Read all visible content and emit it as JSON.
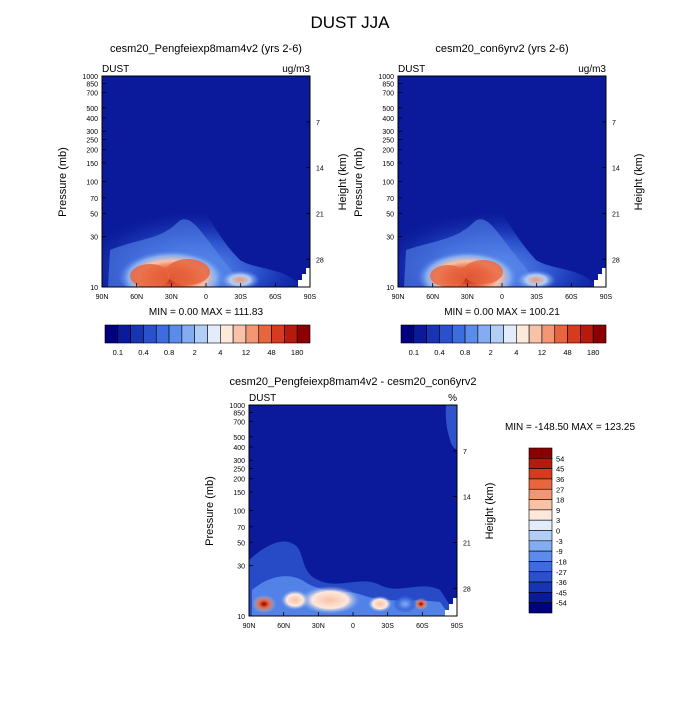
{
  "title": "DUST JJA",
  "colors": {
    "upper_scale": [
      "#00007f",
      "#0a1a9a",
      "#1734b4",
      "#2a50cc",
      "#3d6ce0",
      "#5b8cec",
      "#84acf2",
      "#b2cdf6",
      "#e2ecfa",
      "#fde8dc",
      "#f8c2a8",
      "#f29674",
      "#e8653e",
      "#d63a1f",
      "#b51a0e",
      "#8b0000"
    ],
    "diff_scale": [
      "#00007f",
      "#0a1a9a",
      "#1734b4",
      "#2a50cc",
      "#3d6ce0",
      "#5b8cec",
      "#84acf2",
      "#b2cdf6",
      "#e2ecfa",
      "#fde8dc",
      "#f8c2a8",
      "#f29674",
      "#e8653e",
      "#d63a1f",
      "#b51a0e",
      "#8b0000"
    ],
    "background": "#0a1a9a"
  },
  "chart_data": [
    {
      "type": "heatmap",
      "title": "cesm20_Pengfeiexp8mam4v2 (yrs 2-6)",
      "left_label": "DUST",
      "right_label": "ug/m3",
      "ylabel": "Pressure (mb)",
      "ylabel_right": "Height (km)",
      "xticks": [
        "90N",
        "60N",
        "30N",
        "0",
        "30S",
        "60S",
        "90S"
      ],
      "yticks": [
        "10",
        "30",
        "50",
        "70",
        "100",
        "150",
        "200",
        "250",
        "300",
        "400",
        "500",
        "700",
        "850",
        "1000"
      ],
      "yticks_right": [
        "28",
        "21",
        "14",
        "7"
      ],
      "stats": "MIN =   0.00  MAX = 111.83",
      "colorbar_labels": [
        "0.1",
        "0.4",
        "0.8",
        "2",
        "4",
        "12",
        "48",
        "180"
      ],
      "xlim": [
        90,
        -90
      ],
      "ylim_mb": [
        1000,
        10
      ]
    },
    {
      "type": "heatmap",
      "title": "cesm20_con6yrv2 (yrs 2-6)",
      "left_label": "DUST",
      "right_label": "ug/m3",
      "ylabel": "Pressure (mb)",
      "ylabel_right": "Height (km)",
      "xticks": [
        "90N",
        "60N",
        "30N",
        "0",
        "30S",
        "60S",
        "90S"
      ],
      "yticks": [
        "10",
        "30",
        "50",
        "70",
        "100",
        "150",
        "200",
        "250",
        "300",
        "400",
        "500",
        "700",
        "850",
        "1000"
      ],
      "yticks_right": [
        "28",
        "21",
        "14",
        "7"
      ],
      "stats": "MIN =   0.00  MAX = 100.21",
      "colorbar_labels": [
        "0.1",
        "0.4",
        "0.8",
        "2",
        "4",
        "12",
        "48",
        "180"
      ],
      "xlim": [
        90,
        -90
      ],
      "ylim_mb": [
        1000,
        10
      ]
    },
    {
      "type": "heatmap",
      "title": "cesm20_Pengfeiexp8mam4v2 - cesm20_con6yrv2",
      "left_label": "DUST",
      "right_label": "%",
      "ylabel": "Pressure (mb)",
      "ylabel_right": "Height (km)",
      "xticks": [
        "90N",
        "60N",
        "30N",
        "0",
        "30S",
        "60S",
        "90S"
      ],
      "yticks": [
        "10",
        "30",
        "50",
        "70",
        "100",
        "150",
        "200",
        "250",
        "300",
        "400",
        "500",
        "700",
        "850",
        "1000"
      ],
      "yticks_right": [
        "28",
        "21",
        "14",
        "7"
      ],
      "stats": "MIN = -148.50  MAX = 123.25",
      "colorbar_labels": [
        "54",
        "45",
        "36",
        "27",
        "18",
        "9",
        "3",
        "0",
        "-3",
        "-9",
        "-18",
        "-27",
        "-36",
        "-45",
        "-54"
      ],
      "xlim": [
        90,
        -90
      ],
      "ylim_mb": [
        1000,
        10
      ]
    }
  ]
}
